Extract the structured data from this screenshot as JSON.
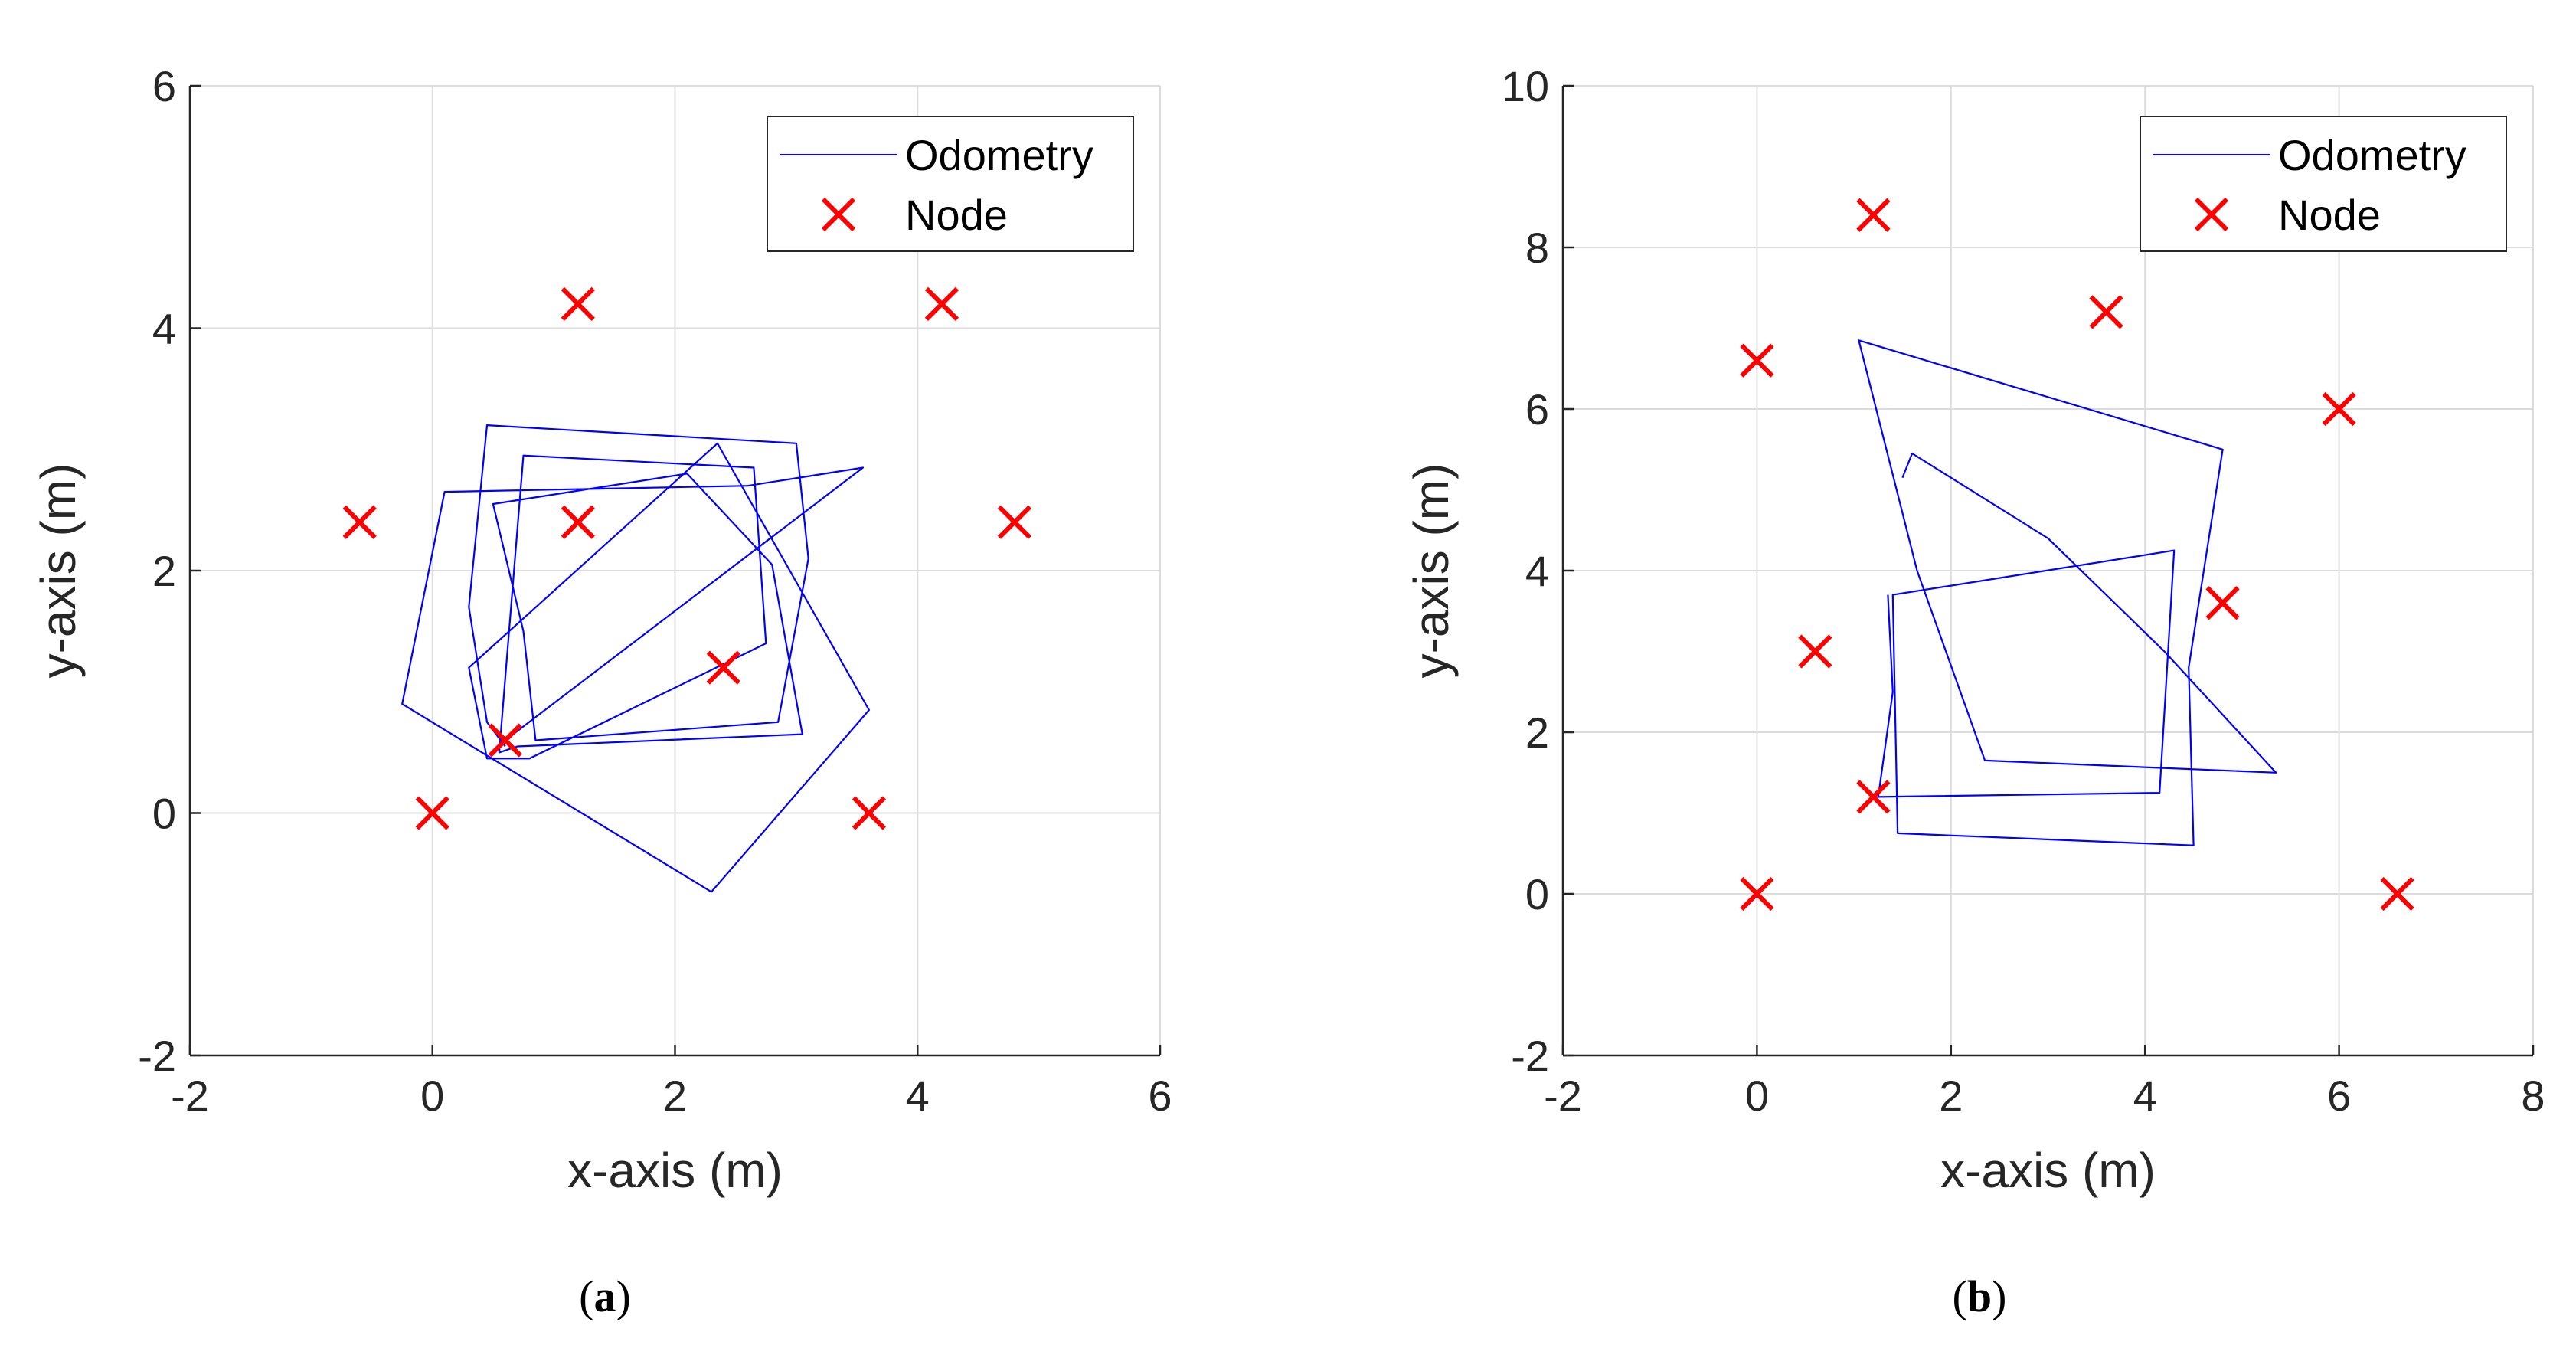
{
  "figure": {
    "colors": {
      "odometry": "#0000ff",
      "node": "#ff0000",
      "axis": "#262626",
      "grid": "#dcdcdc"
    }
  },
  "chart_data": [
    {
      "type": "line",
      "panel_label": "a",
      "caption": "(a)",
      "xlabel": "x-axis (m)",
      "ylabel": "y-axis (m)",
      "xlim": [
        -2,
        6
      ],
      "ylim": [
        -2,
        6
      ],
      "xticks": [
        -2,
        0,
        2,
        4,
        6
      ],
      "yticks": [
        -2,
        0,
        2,
        4,
        6
      ],
      "xtick_labels": [
        "-2",
        "0",
        "2",
        "4",
        "6"
      ],
      "ytick_labels": [
        "-2",
        "0",
        "2",
        "4",
        "6"
      ],
      "grid": true,
      "legend": {
        "position": "top-right",
        "entries": [
          "Odometry",
          "Node"
        ]
      },
      "series": [
        {
          "name": "Odometry",
          "style": "line",
          "x": [
            0.6,
            0.45,
            0.3,
            0.45,
            3.0,
            3.1,
            2.85,
            0.85,
            0.75,
            0.5,
            2.1,
            2.8,
            3.05,
            0.7,
            0.55,
            0.75,
            2.65,
            2.75,
            0.8,
            0.45,
            0.3,
            2.35,
            3.6,
            2.3,
            -0.25,
            0.1,
            2.6,
            3.55,
            0.6
          ],
          "y": [
            0.55,
            0.75,
            1.7,
            3.2,
            3.05,
            2.1,
            0.75,
            0.6,
            1.5,
            2.55,
            2.8,
            2.05,
            0.65,
            0.55,
            0.5,
            2.95,
            2.85,
            1.4,
            0.45,
            0.45,
            1.2,
            3.05,
            0.85,
            -0.65,
            0.9,
            2.65,
            2.7,
            2.85,
            0.6
          ]
        },
        {
          "name": "Node",
          "style": "marker-x",
          "x": [
            0,
            3.6,
            1.2,
            4.2,
            -0.6,
            1.2,
            4.8,
            2.4,
            0.6
          ],
          "y": [
            0,
            0,
            4.2,
            4.2,
            2.4,
            2.4,
            2.4,
            1.2,
            0.6
          ]
        }
      ]
    },
    {
      "type": "line",
      "panel_label": "b",
      "caption": "(b)",
      "xlabel": "x-axis (m)",
      "ylabel": "y-axis (m)",
      "xlim": [
        -2,
        8
      ],
      "ylim": [
        -2,
        10
      ],
      "xticks": [
        -2,
        0,
        2,
        4,
        6,
        8
      ],
      "yticks": [
        -2,
        0,
        2,
        4,
        6,
        8,
        10
      ],
      "xtick_labels": [
        "-2",
        "0",
        "2",
        "4",
        "6",
        "8"
      ],
      "ytick_labels": [
        "-2",
        "0",
        "2",
        "4",
        "6",
        "8",
        "10"
      ],
      "grid": true,
      "legend": {
        "position": "top-right",
        "entries": [
          "Odometry",
          "Node"
        ]
      },
      "series": [
        {
          "name": "Odometry",
          "style": "line",
          "x": [
            1.5,
            1.6,
            3.0,
            4.2,
            5.35,
            2.35,
            1.65,
            1.05,
            4.8,
            4.45,
            4.5,
            1.45,
            1.4,
            4.3,
            4.15,
            1.25,
            1.4,
            1.35
          ],
          "y": [
            5.15,
            5.45,
            4.4,
            3.0,
            1.5,
            1.65,
            4.0,
            6.85,
            5.5,
            2.8,
            0.6,
            0.75,
            3.7,
            4.25,
            1.25,
            1.2,
            2.5,
            3.7
          ]
        },
        {
          "name": "Node",
          "style": "marker-x",
          "x": [
            0,
            6.6,
            1.2,
            3.6,
            0,
            6.0,
            0.6,
            4.8,
            1.2
          ],
          "y": [
            0,
            0,
            8.4,
            7.2,
            6.6,
            6.0,
            3.0,
            3.6,
            1.2
          ]
        }
      ]
    }
  ]
}
